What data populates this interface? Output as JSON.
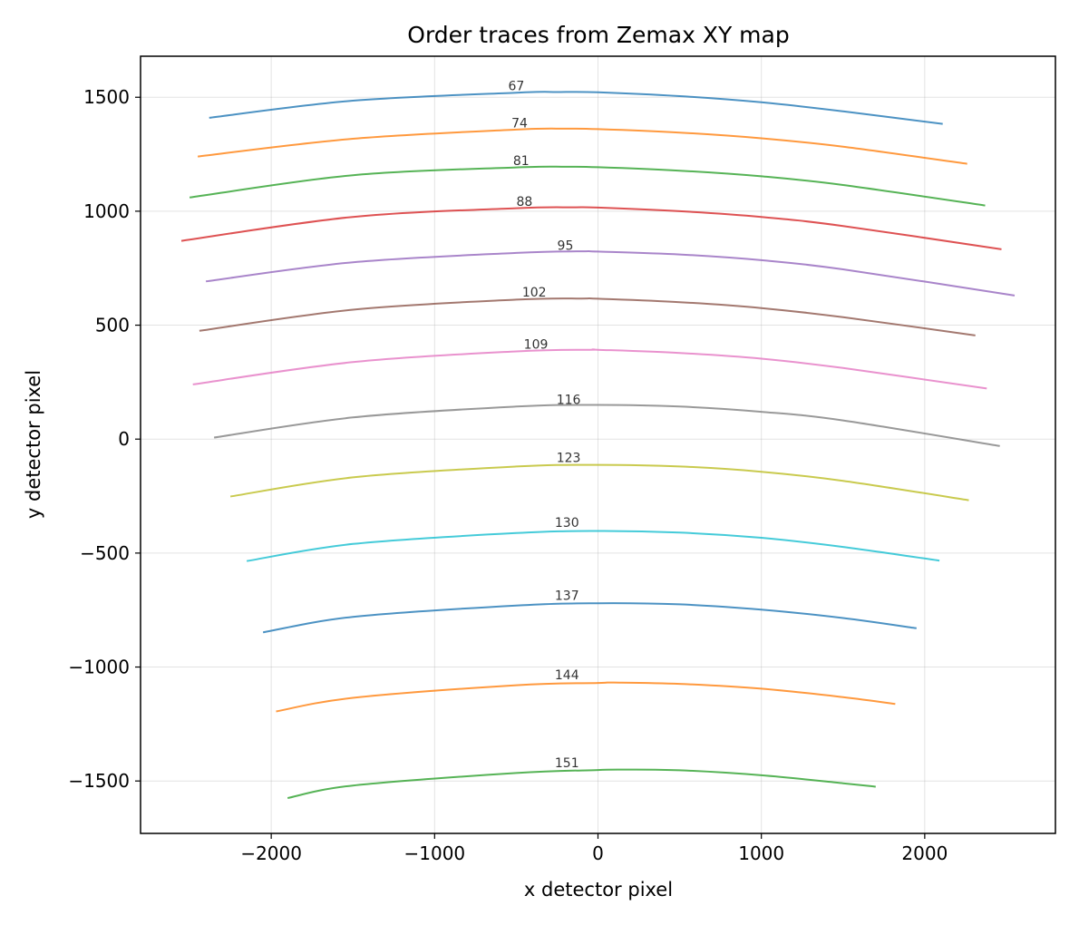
{
  "chart_data": {
    "type": "line",
    "title": "Order traces from Zemax XY map",
    "xlabel": "x detector pixel",
    "ylabel": "y detector pixel",
    "xlim": [
      -2800,
      2800
    ],
    "ylim": [
      -1730,
      1680
    ],
    "xticks": [
      -2000,
      -1000,
      0,
      1000,
      2000
    ],
    "yticks": [
      -1500,
      -1000,
      -500,
      0,
      500,
      1000,
      1500
    ],
    "xtick_labels": [
      "−2000",
      "−1000",
      "0",
      "1000",
      "2000"
    ],
    "ytick_labels": [
      "−1500",
      "−1000",
      "−500",
      "0",
      "500",
      "1000",
      "1500"
    ],
    "grid": true,
    "series": [
      {
        "name": "67",
        "color": "#1f77b4",
        "x": [
          -2380,
          -1500,
          -500,
          -250,
          0,
          500,
          1000,
          1500,
          2110
        ],
        "y": [
          1410,
          1485,
          1520,
          1523,
          1522,
          1505,
          1478,
          1438,
          1383
        ],
        "label_at": [
          -500,
          1530
        ]
      },
      {
        "name": "74",
        "color": "#ff7f0e",
        "x": [
          -2450,
          -1500,
          -500,
          -200,
          0,
          500,
          1000,
          1500,
          2260
        ],
        "y": [
          1240,
          1318,
          1358,
          1362,
          1360,
          1345,
          1320,
          1283,
          1208
        ],
        "label_at": [
          -480,
          1368
        ]
      },
      {
        "name": "81",
        "color": "#2ca02c",
        "x": [
          -2500,
          -1500,
          -500,
          -200,
          0,
          500,
          1000,
          1500,
          2370
        ],
        "y": [
          1060,
          1158,
          1192,
          1195,
          1193,
          1178,
          1153,
          1115,
          1025
        ],
        "label_at": [
          -470,
          1203
        ]
      },
      {
        "name": "88",
        "color": "#d62728",
        "x": [
          -2550,
          -1500,
          -500,
          -150,
          0,
          500,
          1000,
          1500,
          2470
        ],
        "y": [
          870,
          975,
          1013,
          1017,
          1016,
          1000,
          975,
          935,
          833
        ],
        "label_at": [
          -450,
          1023
        ]
      },
      {
        "name": "95",
        "color": "#9467bd",
        "x": [
          -2400,
          -1500,
          -500,
          -100,
          0,
          500,
          1000,
          1500,
          2550
        ],
        "y": [
          692,
          776,
          817,
          824,
          823,
          810,
          785,
          745,
          630
        ],
        "label_at": [
          -200,
          830
        ]
      },
      {
        "name": "102",
        "color": "#8c564b",
        "x": [
          -2440,
          -1500,
          -500,
          -100,
          0,
          500,
          1000,
          1500,
          2310
        ],
        "y": [
          475,
          568,
          612,
          617,
          616,
          601,
          575,
          535,
          455
        ],
        "label_at": [
          -390,
          625
        ]
      },
      {
        "name": "109",
        "color": "#e377c2",
        "x": [
          -2480,
          -1500,
          -500,
          -50,
          0,
          500,
          1000,
          1500,
          2380
        ],
        "y": [
          240,
          338,
          385,
          392,
          392,
          378,
          353,
          312,
          222
        ],
        "label_at": [
          -380,
          397
        ]
      },
      {
        "name": "116",
        "color": "#7f7f7f",
        "x": [
          -2350,
          -1500,
          -500,
          0,
          500,
          1000,
          1500,
          2460
        ],
        "y": [
          7,
          95,
          143,
          150,
          143,
          120,
          82,
          -30
        ],
        "label_at": [
          -180,
          155
        ]
      },
      {
        "name": "123",
        "color": "#bcbd22",
        "x": [
          -2250,
          -1500,
          -500,
          0,
          500,
          1000,
          1500,
          2270
        ],
        "y": [
          -252,
          -168,
          -120,
          -113,
          -120,
          -143,
          -183,
          -268
        ],
        "label_at": [
          -180,
          -100
        ]
      },
      {
        "name": "130",
        "color": "#17becf",
        "x": [
          -2150,
          -1500,
          -500,
          0,
          500,
          1000,
          1500,
          2090
        ],
        "y": [
          -535,
          -460,
          -412,
          -403,
          -410,
          -433,
          -473,
          -533
        ],
        "label_at": [
          -190,
          -385
        ]
      },
      {
        "name": "137",
        "color": "#1f77b4",
        "x": [
          -2050,
          -1500,
          -500,
          0,
          500,
          1000,
          1500,
          1950
        ],
        "y": [
          -848,
          -780,
          -730,
          -720,
          -725,
          -748,
          -785,
          -830
        ],
        "label_at": [
          -190,
          -705
        ]
      },
      {
        "name": "144",
        "color": "#ff7f0e",
        "x": [
          -1970,
          -1500,
          -500,
          0,
          100,
          500,
          1000,
          1500,
          1820
        ],
        "y": [
          -1195,
          -1135,
          -1080,
          -1070,
          -1068,
          -1074,
          -1095,
          -1132,
          -1162
        ],
        "label_at": [
          -190,
          -1053
        ]
      },
      {
        "name": "151",
        "color": "#2ca02c",
        "x": [
          -1900,
          -1500,
          -500,
          0,
          150,
          500,
          1000,
          1500,
          1700
        ],
        "y": [
          -1575,
          -1520,
          -1465,
          -1452,
          -1450,
          -1453,
          -1475,
          -1510,
          -1525
        ],
        "label_at": [
          -190,
          -1440
        ]
      }
    ]
  }
}
